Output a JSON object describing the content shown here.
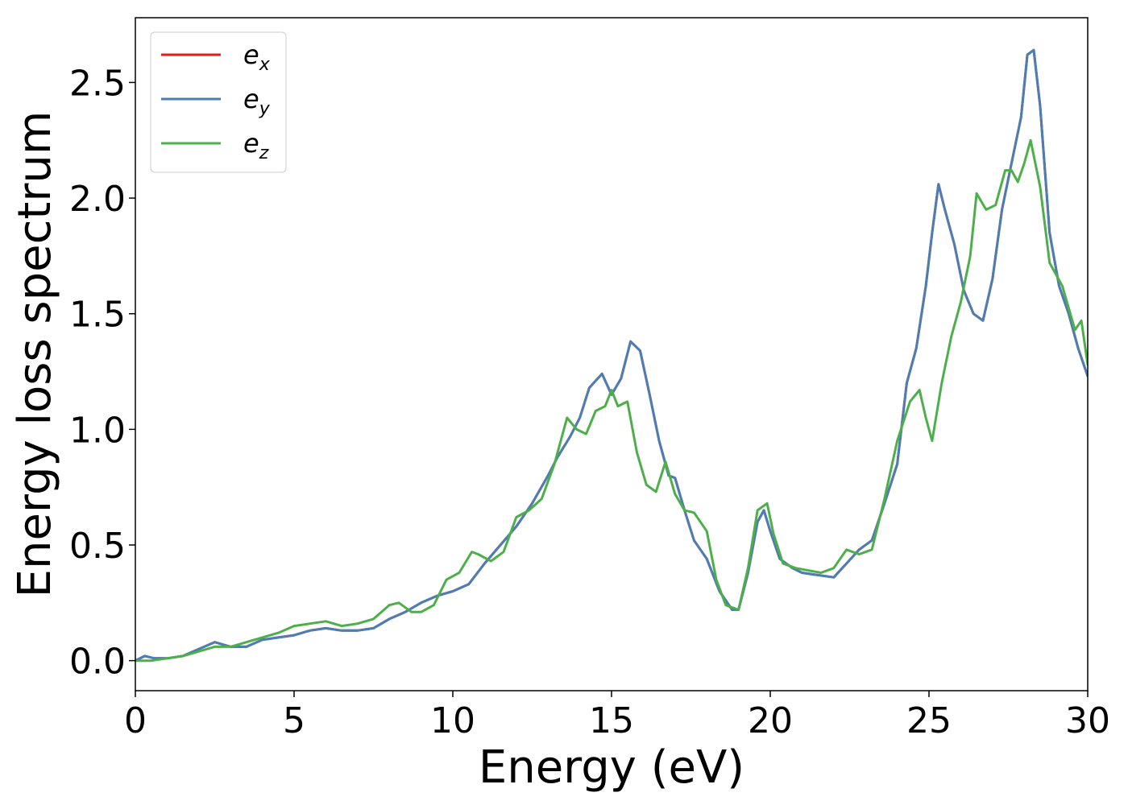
{
  "chart_data": {
    "type": "line",
    "title": "",
    "xlabel": "Energy (eV)",
    "ylabel": "Energy loss spectrum",
    "xlim": [
      0,
      30
    ],
    "ylim": [
      -0.13,
      2.78
    ],
    "xticks": [
      0,
      5,
      10,
      15,
      20,
      25,
      30
    ],
    "xtick_labels": [
      "0",
      "5",
      "10",
      "15",
      "20",
      "25",
      "30"
    ],
    "yticks": [
      0.0,
      0.5,
      1.0,
      1.5,
      2.0,
      2.5
    ],
    "ytick_labels": [
      "0.0",
      "0.5",
      "1.0",
      "1.5",
      "2.0",
      "2.5"
    ],
    "grid": false,
    "legend_position": "top-left",
    "series": [
      {
        "name": "e_x",
        "legend_base": "e",
        "legend_sub": "x",
        "color": "#e41a1c",
        "x": [
          0,
          0.3,
          0.6,
          1.0,
          1.5,
          2.0,
          2.5,
          3.0,
          3.5,
          4.0,
          4.5,
          5.0,
          5.5,
          6.0,
          6.5,
          7.0,
          7.5,
          8.0,
          8.5,
          9.0,
          9.5,
          10.0,
          10.5,
          11.0,
          11.5,
          12.0,
          12.5,
          13.0,
          13.3,
          13.7,
          14.0,
          14.3,
          14.5,
          14.7,
          15.0,
          15.3,
          15.6,
          15.9,
          16.2,
          16.5,
          16.8,
          17.0,
          17.3,
          17.6,
          18.0,
          18.4,
          18.8,
          19.0,
          19.3,
          19.6,
          19.8,
          20.0,
          20.3,
          20.7,
          21.0,
          21.5,
          22.0,
          22.4,
          22.8,
          23.2,
          23.6,
          24.0,
          24.3,
          24.6,
          24.9,
          25.1,
          25.3,
          25.5,
          25.8,
          26.1,
          26.4,
          26.7,
          27.0,
          27.3,
          27.6,
          27.9,
          28.1,
          28.3,
          28.5,
          28.8,
          29.1,
          29.4,
          29.7,
          30.0
        ],
        "y": [
          0.0,
          0.02,
          0.01,
          0.01,
          0.02,
          0.05,
          0.08,
          0.06,
          0.06,
          0.09,
          0.1,
          0.11,
          0.13,
          0.14,
          0.13,
          0.13,
          0.14,
          0.18,
          0.21,
          0.25,
          0.28,
          0.3,
          0.33,
          0.42,
          0.5,
          0.58,
          0.68,
          0.8,
          0.88,
          0.97,
          1.05,
          1.18,
          1.21,
          1.24,
          1.15,
          1.22,
          1.38,
          1.34,
          1.15,
          0.95,
          0.8,
          0.79,
          0.65,
          0.52,
          0.44,
          0.3,
          0.22,
          0.22,
          0.38,
          0.6,
          0.65,
          0.56,
          0.44,
          0.4,
          0.38,
          0.37,
          0.36,
          0.42,
          0.48,
          0.52,
          0.68,
          0.85,
          1.2,
          1.35,
          1.62,
          1.85,
          2.06,
          1.95,
          1.8,
          1.6,
          1.5,
          1.47,
          1.65,
          1.95,
          2.15,
          2.35,
          2.62,
          2.64,
          2.4,
          1.85,
          1.62,
          1.5,
          1.35,
          1.23
        ]
      },
      {
        "name": "e_y",
        "legend_base": "e",
        "legend_sub": "y",
        "color": "#4a7fb5",
        "x": [
          0,
          0.3,
          0.6,
          1.0,
          1.5,
          2.0,
          2.5,
          3.0,
          3.5,
          4.0,
          4.5,
          5.0,
          5.5,
          6.0,
          6.5,
          7.0,
          7.5,
          8.0,
          8.5,
          9.0,
          9.5,
          10.0,
          10.5,
          11.0,
          11.5,
          12.0,
          12.5,
          13.0,
          13.3,
          13.7,
          14.0,
          14.3,
          14.5,
          14.7,
          15.0,
          15.3,
          15.6,
          15.9,
          16.2,
          16.5,
          16.8,
          17.0,
          17.3,
          17.6,
          18.0,
          18.4,
          18.8,
          19.0,
          19.3,
          19.6,
          19.8,
          20.0,
          20.3,
          20.7,
          21.0,
          21.5,
          22.0,
          22.4,
          22.8,
          23.2,
          23.6,
          24.0,
          24.3,
          24.6,
          24.9,
          25.1,
          25.3,
          25.5,
          25.8,
          26.1,
          26.4,
          26.7,
          27.0,
          27.3,
          27.6,
          27.9,
          28.1,
          28.3,
          28.5,
          28.8,
          29.1,
          29.4,
          29.7,
          30.0
        ],
        "y": [
          0.0,
          0.02,
          0.01,
          0.01,
          0.02,
          0.05,
          0.08,
          0.06,
          0.06,
          0.09,
          0.1,
          0.11,
          0.13,
          0.14,
          0.13,
          0.13,
          0.14,
          0.18,
          0.21,
          0.25,
          0.28,
          0.3,
          0.33,
          0.42,
          0.5,
          0.58,
          0.68,
          0.8,
          0.88,
          0.97,
          1.05,
          1.18,
          1.21,
          1.24,
          1.15,
          1.22,
          1.38,
          1.34,
          1.15,
          0.95,
          0.8,
          0.79,
          0.65,
          0.52,
          0.44,
          0.3,
          0.22,
          0.22,
          0.38,
          0.6,
          0.65,
          0.56,
          0.44,
          0.4,
          0.38,
          0.37,
          0.36,
          0.42,
          0.48,
          0.52,
          0.68,
          0.85,
          1.2,
          1.35,
          1.62,
          1.85,
          2.06,
          1.95,
          1.8,
          1.6,
          1.5,
          1.47,
          1.65,
          1.95,
          2.15,
          2.35,
          2.62,
          2.64,
          2.4,
          1.85,
          1.62,
          1.5,
          1.35,
          1.23
        ]
      },
      {
        "name": "e_z",
        "legend_base": "e",
        "legend_sub": "z",
        "color": "#4daf4a",
        "x": [
          0,
          0.5,
          1.0,
          1.5,
          2.0,
          2.5,
          3.0,
          3.5,
          4.0,
          4.5,
          5.0,
          5.5,
          6.0,
          6.5,
          7.0,
          7.5,
          8.0,
          8.3,
          8.7,
          9.0,
          9.4,
          9.8,
          10.2,
          10.6,
          10.8,
          11.2,
          11.6,
          12.0,
          12.4,
          12.8,
          13.2,
          13.6,
          13.9,
          14.2,
          14.5,
          14.8,
          15.0,
          15.2,
          15.5,
          15.8,
          16.1,
          16.4,
          16.7,
          17.0,
          17.3,
          17.6,
          18.0,
          18.3,
          18.6,
          19.0,
          19.3,
          19.6,
          19.9,
          20.1,
          20.4,
          20.8,
          21.2,
          21.6,
          22.0,
          22.4,
          22.8,
          23.2,
          23.6,
          24.0,
          24.4,
          24.7,
          24.9,
          25.1,
          25.4,
          25.7,
          26.0,
          26.3,
          26.5,
          26.8,
          27.1,
          27.4,
          27.6,
          27.8,
          28.0,
          28.2,
          28.5,
          28.8,
          29.2,
          29.6,
          29.8,
          30.0
        ],
        "y": [
          0.0,
          0.0,
          0.01,
          0.02,
          0.04,
          0.06,
          0.06,
          0.08,
          0.1,
          0.12,
          0.15,
          0.16,
          0.17,
          0.15,
          0.16,
          0.18,
          0.24,
          0.25,
          0.21,
          0.21,
          0.24,
          0.35,
          0.38,
          0.47,
          0.46,
          0.43,
          0.47,
          0.62,
          0.65,
          0.7,
          0.85,
          1.05,
          1.0,
          0.98,
          1.08,
          1.1,
          1.17,
          1.1,
          1.12,
          0.9,
          0.76,
          0.73,
          0.86,
          0.72,
          0.65,
          0.64,
          0.56,
          0.35,
          0.24,
          0.22,
          0.4,
          0.65,
          0.68,
          0.55,
          0.42,
          0.4,
          0.39,
          0.38,
          0.4,
          0.48,
          0.46,
          0.48,
          0.7,
          0.95,
          1.12,
          1.17,
          1.05,
          0.95,
          1.2,
          1.4,
          1.55,
          1.75,
          2.02,
          1.95,
          1.97,
          2.12,
          2.12,
          2.07,
          2.15,
          2.25,
          2.05,
          1.72,
          1.62,
          1.43,
          1.47,
          1.28
        ]
      }
    ]
  }
}
